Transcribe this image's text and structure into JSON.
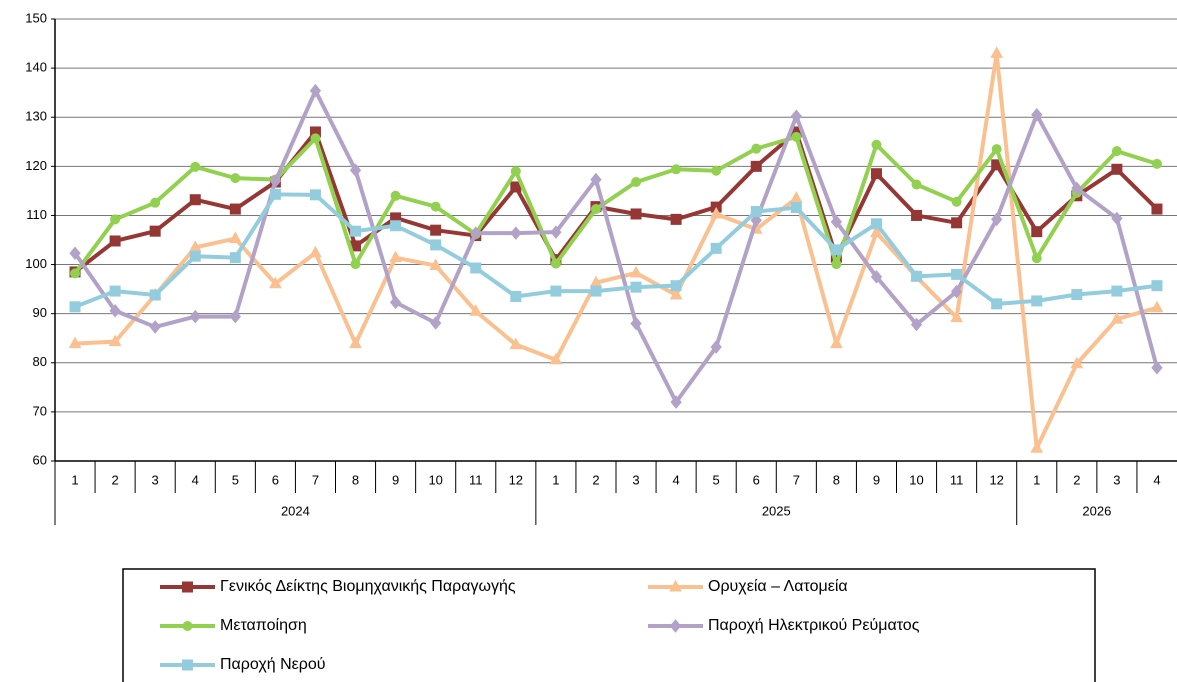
{
  "chart_data": {
    "type": "line",
    "categories": [
      "1",
      "2",
      "3",
      "4",
      "5",
      "6",
      "7",
      "8",
      "9",
      "10",
      "11",
      "12",
      "1",
      "2",
      "3",
      "4",
      "5",
      "6",
      "7",
      "8",
      "9",
      "10",
      "11",
      "12",
      "1",
      "2",
      "3",
      "4"
    ],
    "year_labels": [
      "2024",
      "2025",
      "2026"
    ],
    "ylim": [
      60,
      150
    ],
    "yticks": [
      60,
      70,
      80,
      90,
      100,
      110,
      120,
      130,
      140,
      150
    ],
    "grid": true,
    "legend": "bottom",
    "series": [
      {
        "name": "Γενικός Δείκτης Βιομηχανικής Παραγωγής",
        "color": "#953735",
        "marker": "square",
        "values": [
          98.5,
          104.8,
          106.8,
          113.2,
          111.3,
          116.8,
          127,
          103.8,
          109.5,
          107,
          105.9,
          115.8,
          101,
          111.8,
          110.3,
          109.2,
          111.7,
          120,
          127,
          101.5,
          118.5,
          110,
          108.5,
          120.3,
          106.7,
          114,
          119.4,
          111.3
        ]
      },
      {
        "name": "Ορυχεία – Λατομεία",
        "color": "#fac090",
        "marker": "triangle",
        "values": [
          83.9,
          84.3,
          93.8,
          103.5,
          105.3,
          96.1,
          102.4,
          83.9,
          101.4,
          99.8,
          90.5,
          83.7,
          80.6,
          96.3,
          98.3,
          93.8,
          110.3,
          107.2,
          113.5,
          83.9,
          106.5,
          97.5,
          89.2,
          143,
          62.6,
          79.8,
          88.9,
          91.2
        ]
      },
      {
        "name": "Μεταποίηση",
        "color": "#92d050",
        "marker": "circle",
        "values": [
          98.2,
          109.2,
          112.6,
          119.9,
          117.6,
          117.3,
          125.7,
          100.1,
          114,
          111.8,
          106.2,
          119,
          100.2,
          111.3,
          116.8,
          119.4,
          119.1,
          123.6,
          126,
          100.1,
          124.4,
          116.3,
          112.8,
          123.5,
          101.3,
          114.6,
          123.1,
          120.5
        ]
      },
      {
        "name": "Παροχή Ηλεκτρικού Ρεύματος",
        "color": "#b3a2c7",
        "marker": "diamond",
        "values": [
          102.3,
          90.6,
          87.3,
          89.4,
          89.4,
          117,
          135.4,
          119.2,
          92.3,
          88.1,
          106.4,
          106.4,
          106.6,
          117.3,
          88,
          72,
          83.2,
          109,
          130.2,
          108.7,
          97.5,
          87.8,
          94.5,
          109.2,
          130.5,
          115.5,
          109.4,
          79
        ]
      },
      {
        "name": "Παροχή Νερού",
        "color": "#93cddd",
        "marker": "square",
        "values": [
          91.4,
          94.6,
          93.8,
          101.7,
          101.4,
          114.3,
          114.2,
          106.8,
          107.9,
          104,
          99.3,
          93.5,
          94.6,
          94.6,
          95.4,
          95.7,
          103.3,
          110.8,
          111.6,
          103,
          108.3,
          97.6,
          98,
          92,
          92.6,
          93.9,
          94.6,
          95.7
        ]
      }
    ]
  }
}
